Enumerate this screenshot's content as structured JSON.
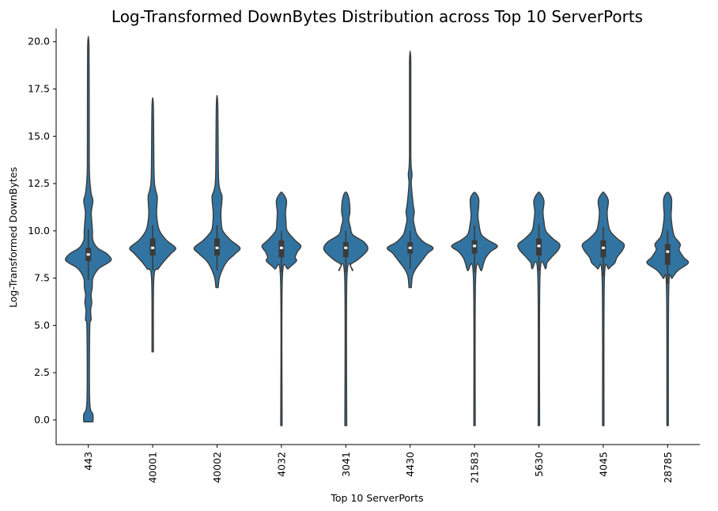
{
  "chart_data": {
    "type": "violin",
    "title": "Log-Transformed DownBytes Distribution across Top 10 ServerPorts",
    "xlabel": "Top 10 ServerPorts",
    "ylabel": "Log-Transformed DownBytes",
    "ylim": [
      -1.3,
      20.7
    ],
    "yticks": [
      "0.0",
      "2.5",
      "5.0",
      "7.5",
      "10.0",
      "12.5",
      "15.0",
      "17.5",
      "20.0"
    ],
    "grid": false,
    "color": "#3274a1",
    "edge_color": "#3b3b3b",
    "categories": [
      "443",
      "40001",
      "40002",
      "4032",
      "3041",
      "4430",
      "21583",
      "5630",
      "4045",
      "28785"
    ],
    "series": [
      {
        "category": "443",
        "min": -0.1,
        "max": 19.7,
        "q1": 8.4,
        "median": 8.75,
        "q3": 9.1,
        "whisker_low": 7.4,
        "whisker_high": 10.1,
        "density": [
          [
            -0.1,
            0.2
          ],
          [
            0.3,
            0.2
          ],
          [
            1,
            0.06
          ],
          [
            4.8,
            0.06
          ],
          [
            5.3,
            0.12
          ],
          [
            5.8,
            0.1
          ],
          [
            6.2,
            0.15
          ],
          [
            6.6,
            0.12
          ],
          [
            7,
            0.17
          ],
          [
            7.5,
            0.2
          ],
          [
            8,
            0.45
          ],
          [
            8.3,
            0.85
          ],
          [
            8.5,
            1.0
          ],
          [
            8.8,
            0.8
          ],
          [
            9.1,
            0.4
          ],
          [
            9.5,
            0.2
          ],
          [
            10,
            0.18
          ],
          [
            10.5,
            0.15
          ],
          [
            11,
            0.13
          ],
          [
            11.6,
            0.2
          ],
          [
            12,
            0.12
          ],
          [
            13,
            0.05
          ],
          [
            15,
            0.04
          ],
          [
            19.7,
            0.03
          ]
        ]
      },
      {
        "category": "40001",
        "min": 3.6,
        "max": 16.6,
        "q1": 8.7,
        "median": 9.1,
        "q3": 9.6,
        "whisker_low": 7.9,
        "whisker_high": 10.3,
        "density": [
          [
            3.6,
            0.03
          ],
          [
            7.5,
            0.05
          ],
          [
            8,
            0.25
          ],
          [
            8.4,
            0.5
          ],
          [
            8.8,
            0.8
          ],
          [
            9.1,
            1.0
          ],
          [
            9.5,
            0.6
          ],
          [
            10,
            0.3
          ],
          [
            10.5,
            0.2
          ],
          [
            11,
            0.17
          ],
          [
            11.8,
            0.2
          ],
          [
            12.2,
            0.12
          ],
          [
            13,
            0.06
          ],
          [
            16.6,
            0.03
          ]
        ]
      },
      {
        "category": "40002",
        "min": 7.0,
        "max": 16.7,
        "q1": 8.7,
        "median": 9.1,
        "q3": 9.6,
        "whisker_low": 7.9,
        "whisker_high": 10.3,
        "density": [
          [
            7,
            0.05
          ],
          [
            7.5,
            0.1
          ],
          [
            8,
            0.25
          ],
          [
            8.4,
            0.45
          ],
          [
            8.8,
            0.8
          ],
          [
            9.1,
            1.0
          ],
          [
            9.5,
            0.6
          ],
          [
            10,
            0.25
          ],
          [
            10.5,
            0.18
          ],
          [
            11,
            0.17
          ],
          [
            11.8,
            0.22
          ],
          [
            12.2,
            0.12
          ],
          [
            13,
            0.06
          ],
          [
            16.7,
            0.03
          ]
        ]
      },
      {
        "category": "4032",
        "min": -0.3,
        "max": 12.0,
        "q1": 8.6,
        "median": 9.1,
        "q3": 9.5,
        "whisker_low": 7.8,
        "whisker_high": 10.0,
        "density": [
          [
            -0.3,
            0.03
          ],
          [
            7.5,
            0.04
          ],
          [
            8,
            0.3
          ],
          [
            8.4,
            0.65
          ],
          [
            8.6,
            0.6
          ],
          [
            8.9,
            0.7
          ],
          [
            9.2,
            0.85
          ],
          [
            9.5,
            0.6
          ],
          [
            10,
            0.25
          ],
          [
            10.5,
            0.2
          ],
          [
            11,
            0.18
          ],
          [
            11.6,
            0.22
          ],
          [
            12,
            0.05
          ]
        ]
      },
      {
        "category": "3041",
        "min": -0.3,
        "max": 12.0,
        "q1": 8.6,
        "median": 9.1,
        "q3": 9.4,
        "whisker_low": 7.8,
        "whisker_high": 10.0,
        "density": [
          [
            -0.3,
            0.04
          ],
          [
            7.6,
            0.05
          ],
          [
            7.9,
            0.3
          ],
          [
            8.2,
            0.2
          ],
          [
            8.5,
            0.55
          ],
          [
            9,
            0.95
          ],
          [
            9.4,
            0.8
          ],
          [
            9.8,
            0.3
          ],
          [
            10.2,
            0.2
          ],
          [
            10.6,
            0.13
          ],
          [
            11,
            0.18
          ],
          [
            11.6,
            0.15
          ],
          [
            12,
            0.05
          ]
        ]
      },
      {
        "category": "4430",
        "min": 7.0,
        "max": 18.9,
        "q1": 8.8,
        "median": 9.1,
        "q3": 9.4,
        "whisker_low": 8.0,
        "whisker_high": 10.0,
        "density": [
          [
            7,
            0.05
          ],
          [
            7.6,
            0.1
          ],
          [
            8,
            0.25
          ],
          [
            8.4,
            0.5
          ],
          [
            8.8,
            0.75
          ],
          [
            9.1,
            1.0
          ],
          [
            9.4,
            0.6
          ],
          [
            9.8,
            0.3
          ],
          [
            10.2,
            0.2
          ],
          [
            10.6,
            0.14
          ],
          [
            11,
            0.18
          ],
          [
            11.4,
            0.13
          ],
          [
            12.5,
            0.05
          ],
          [
            13,
            0.08
          ],
          [
            14,
            0.03
          ],
          [
            18.9,
            0.03
          ]
        ]
      },
      {
        "category": "21583",
        "min": -0.3,
        "max": 12.0,
        "q1": 8.8,
        "median": 9.2,
        "q3": 9.5,
        "whisker_low": 7.8,
        "whisker_high": 10.3,
        "density": [
          [
            -0.3,
            0.03
          ],
          [
            7.6,
            0.05
          ],
          [
            7.9,
            0.3
          ],
          [
            8.3,
            0.4
          ],
          [
            8.6,
            0.5
          ],
          [
            8.9,
            0.7
          ],
          [
            9.2,
            1.0
          ],
          [
            9.5,
            0.6
          ],
          [
            9.8,
            0.3
          ],
          [
            10.3,
            0.2
          ],
          [
            10.8,
            0.15
          ],
          [
            11.3,
            0.18
          ],
          [
            11.7,
            0.18
          ],
          [
            12,
            0.05
          ]
        ]
      },
      {
        "category": "5630",
        "min": -0.3,
        "max": 12.0,
        "q1": 8.7,
        "median": 9.2,
        "q3": 9.6,
        "whisker_low": 7.9,
        "whisker_high": 10.3,
        "density": [
          [
            -0.3,
            0.03
          ],
          [
            7.7,
            0.05
          ],
          [
            8,
            0.3
          ],
          [
            8.3,
            0.35
          ],
          [
            8.6,
            0.55
          ],
          [
            9,
            0.85
          ],
          [
            9.3,
            0.9
          ],
          [
            9.6,
            0.6
          ],
          [
            10,
            0.3
          ],
          [
            10.5,
            0.22
          ],
          [
            11,
            0.18
          ],
          [
            11.6,
            0.22
          ],
          [
            12,
            0.05
          ]
        ]
      },
      {
        "category": "4045",
        "min": -0.3,
        "max": 12.0,
        "q1": 8.6,
        "median": 9.1,
        "q3": 9.5,
        "whisker_low": 7.6,
        "whisker_high": 10.2,
        "density": [
          [
            -0.3,
            0.03
          ],
          [
            7.5,
            0.05
          ],
          [
            8,
            0.25
          ],
          [
            8.3,
            0.5
          ],
          [
            8.6,
            0.6
          ],
          [
            9,
            0.85
          ],
          [
            9.3,
            0.9
          ],
          [
            9.6,
            0.6
          ],
          [
            10,
            0.3
          ],
          [
            10.5,
            0.2
          ],
          [
            11,
            0.17
          ],
          [
            11.6,
            0.22
          ],
          [
            12,
            0.05
          ]
        ]
      },
      {
        "category": "28785",
        "min": -0.3,
        "max": 12.0,
        "q1": 8.2,
        "median": 8.9,
        "q3": 9.3,
        "whisker_low": 7.2,
        "whisker_high": 10.0,
        "density": [
          [
            -0.3,
            0.03
          ],
          [
            7,
            0.05
          ],
          [
            7.5,
            0.2
          ],
          [
            7.9,
            0.45
          ],
          [
            8.3,
            0.9
          ],
          [
            8.6,
            0.7
          ],
          [
            9,
            0.5
          ],
          [
            9.3,
            0.55
          ],
          [
            9.7,
            0.3
          ],
          [
            10.2,
            0.2
          ],
          [
            10.8,
            0.15
          ],
          [
            11.2,
            0.17
          ],
          [
            11.7,
            0.17
          ],
          [
            12,
            0.05
          ]
        ]
      }
    ]
  }
}
